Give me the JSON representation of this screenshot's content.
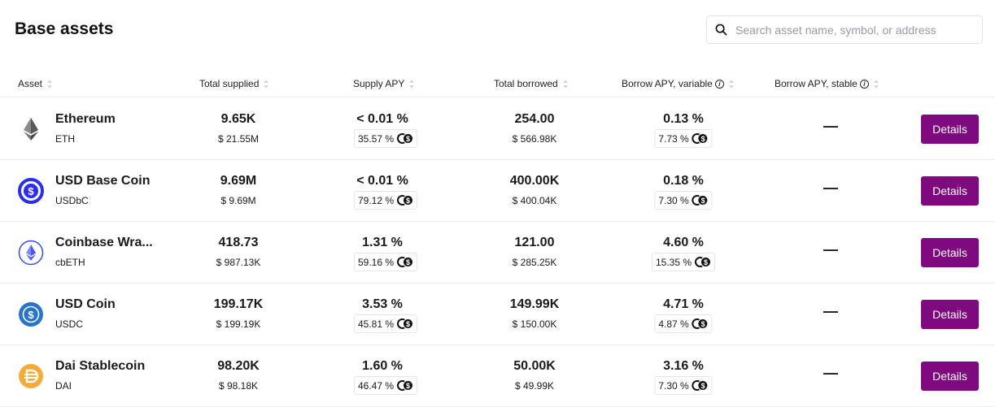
{
  "page": {
    "title": "Base assets"
  },
  "search": {
    "placeholder": "Search asset name, symbol, or address"
  },
  "columns": [
    "Asset",
    "Total supplied",
    "Supply APY",
    "Total borrowed",
    "Borrow APY, variable",
    "Borrow APY, stable"
  ],
  "details_label": "Details",
  "colors": {
    "details_button": "#7f0a7f"
  },
  "rows": [
    {
      "name": "Ethereum",
      "symbol": "ETH",
      "icon": "ethereum-icon",
      "supplied": "9.65K",
      "supplied_usd": "$ 21.55M",
      "supply_apy": "< 0.01 %",
      "supply_incentive": "35.57 %",
      "borrowed": "254.00",
      "borrowed_usd": "$ 566.98K",
      "borrow_var": "0.13 %",
      "borrow_incentive": "7.73 %",
      "borrow_stable": "—"
    },
    {
      "name": "USD Base Coin",
      "symbol": "USDbC",
      "icon": "usdbc-icon",
      "supplied": "9.69M",
      "supplied_usd": "$ 9.69M",
      "supply_apy": "< 0.01 %",
      "supply_incentive": "79.12 %",
      "borrowed": "400.00K",
      "borrowed_usd": "$ 400.04K",
      "borrow_var": "0.18 %",
      "borrow_incentive": "7.30 %",
      "borrow_stable": "—"
    },
    {
      "name": "Coinbase Wra...",
      "symbol": "cbETH",
      "icon": "cbeth-icon",
      "supplied": "418.73",
      "supplied_usd": "$ 987.13K",
      "supply_apy": "1.31 %",
      "supply_incentive": "59.16 %",
      "borrowed": "121.00",
      "borrowed_usd": "$ 285.25K",
      "borrow_var": "4.60 %",
      "borrow_incentive": "15.35 %",
      "borrow_stable": "—"
    },
    {
      "name": "USD Coin",
      "symbol": "USDC",
      "icon": "usdc-icon",
      "supplied": "199.17K",
      "supplied_usd": "$ 199.19K",
      "supply_apy": "3.53 %",
      "supply_incentive": "45.81 %",
      "borrowed": "149.99K",
      "borrowed_usd": "$ 150.00K",
      "borrow_var": "4.71 %",
      "borrow_incentive": "4.87 %",
      "borrow_stable": "—"
    },
    {
      "name": "Dai Stablecoin",
      "symbol": "DAI",
      "icon": "dai-icon",
      "supplied": "98.20K",
      "supplied_usd": "$ 98.18K",
      "supply_apy": "1.60 %",
      "supply_incentive": "46.47 %",
      "borrowed": "50.00K",
      "borrowed_usd": "$ 49.99K",
      "borrow_var": "3.16 %",
      "borrow_incentive": "7.30 %",
      "borrow_stable": "—"
    }
  ]
}
